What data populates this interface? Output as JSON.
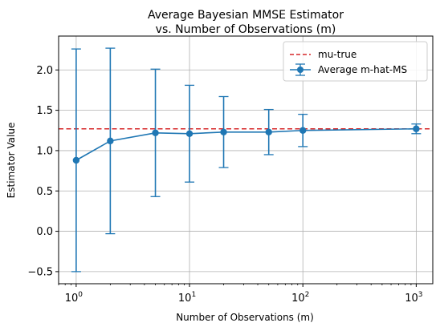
{
  "chart_data": {
    "type": "line",
    "title_line1": "Average Bayesian MMSE Estimator",
    "title_line2": "vs. Number of Observations (m)",
    "xlabel": "Number of Observations (m)",
    "ylabel": "Estimator Value",
    "x_scale": "log",
    "xlim": [
      0.7,
      1400
    ],
    "ylim": [
      -0.65,
      2.42
    ],
    "grid": true,
    "legend_position": "top-right",
    "x_ticks": [
      {
        "value": 1,
        "base": "10",
        "exp": "0"
      },
      {
        "value": 10,
        "base": "10",
        "exp": "1"
      },
      {
        "value": 100,
        "base": "10",
        "exp": "2"
      },
      {
        "value": 1000,
        "base": "10",
        "exp": "3"
      }
    ],
    "y_ticks": [
      {
        "value": -0.5,
        "label": "−0.5"
      },
      {
        "value": 0.0,
        "label": "0.0"
      },
      {
        "value": 0.5,
        "label": "0.5"
      },
      {
        "value": 1.0,
        "label": "1.0"
      },
      {
        "value": 1.5,
        "label": "1.5"
      },
      {
        "value": 2.0,
        "label": "2.0"
      }
    ],
    "reference_line": {
      "name": "mu-true",
      "value": 1.27,
      "color": "#d62728",
      "style": "dashed"
    },
    "series": [
      {
        "name": "Average m-hat-MS",
        "color": "#1f77b4",
        "x": [
          1,
          2,
          5,
          10,
          20,
          50,
          100,
          1000
        ],
        "y": [
          0.88,
          1.12,
          1.22,
          1.21,
          1.23,
          1.23,
          1.25,
          1.27
        ],
        "yerr": [
          1.38,
          1.15,
          0.79,
          0.6,
          0.44,
          0.28,
          0.2,
          0.06
        ]
      }
    ]
  }
}
